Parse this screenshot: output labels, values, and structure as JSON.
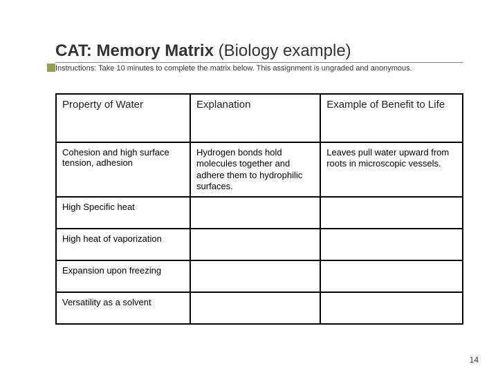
{
  "title_main": "CAT: Memory Matrix ",
  "title_sub": "(Biology example)",
  "instructions": "Instructions: Take 10 minutes to complete the matrix below. This assignment is ungraded and anonymous.",
  "table": {
    "type": "table",
    "columns": [
      {
        "label": "Property of Water",
        "width_pct": 33
      },
      {
        "label": "Explanation",
        "width_pct": 32
      },
      {
        "label": "Example of Benefit to Life",
        "width_pct": 35
      }
    ],
    "rows": [
      {
        "property": "Cohesion and high surface tension, adhesion",
        "explanation": "Hydrogen bonds hold molecules together and adhere them to hydrophilic surfaces.",
        "benefit": "Leaves pull water upward from roots in microscopic vessels."
      },
      {
        "property": "High Specific heat",
        "explanation": "",
        "benefit": ""
      },
      {
        "property": "High heat of vaporization",
        "explanation": "",
        "benefit": ""
      },
      {
        "property": "Expansion upon freezing",
        "explanation": "",
        "benefit": ""
      },
      {
        "property": "Versatility as a solvent",
        "explanation": "",
        "benefit": ""
      }
    ],
    "border_color": "#000000",
    "header_fontsize": 15,
    "cell_fontsize": 13,
    "small_fontsize": 10
  },
  "page_number": "14",
  "colors": {
    "accent": "#98a050",
    "text": "#333333",
    "background": "#ffffff"
  }
}
